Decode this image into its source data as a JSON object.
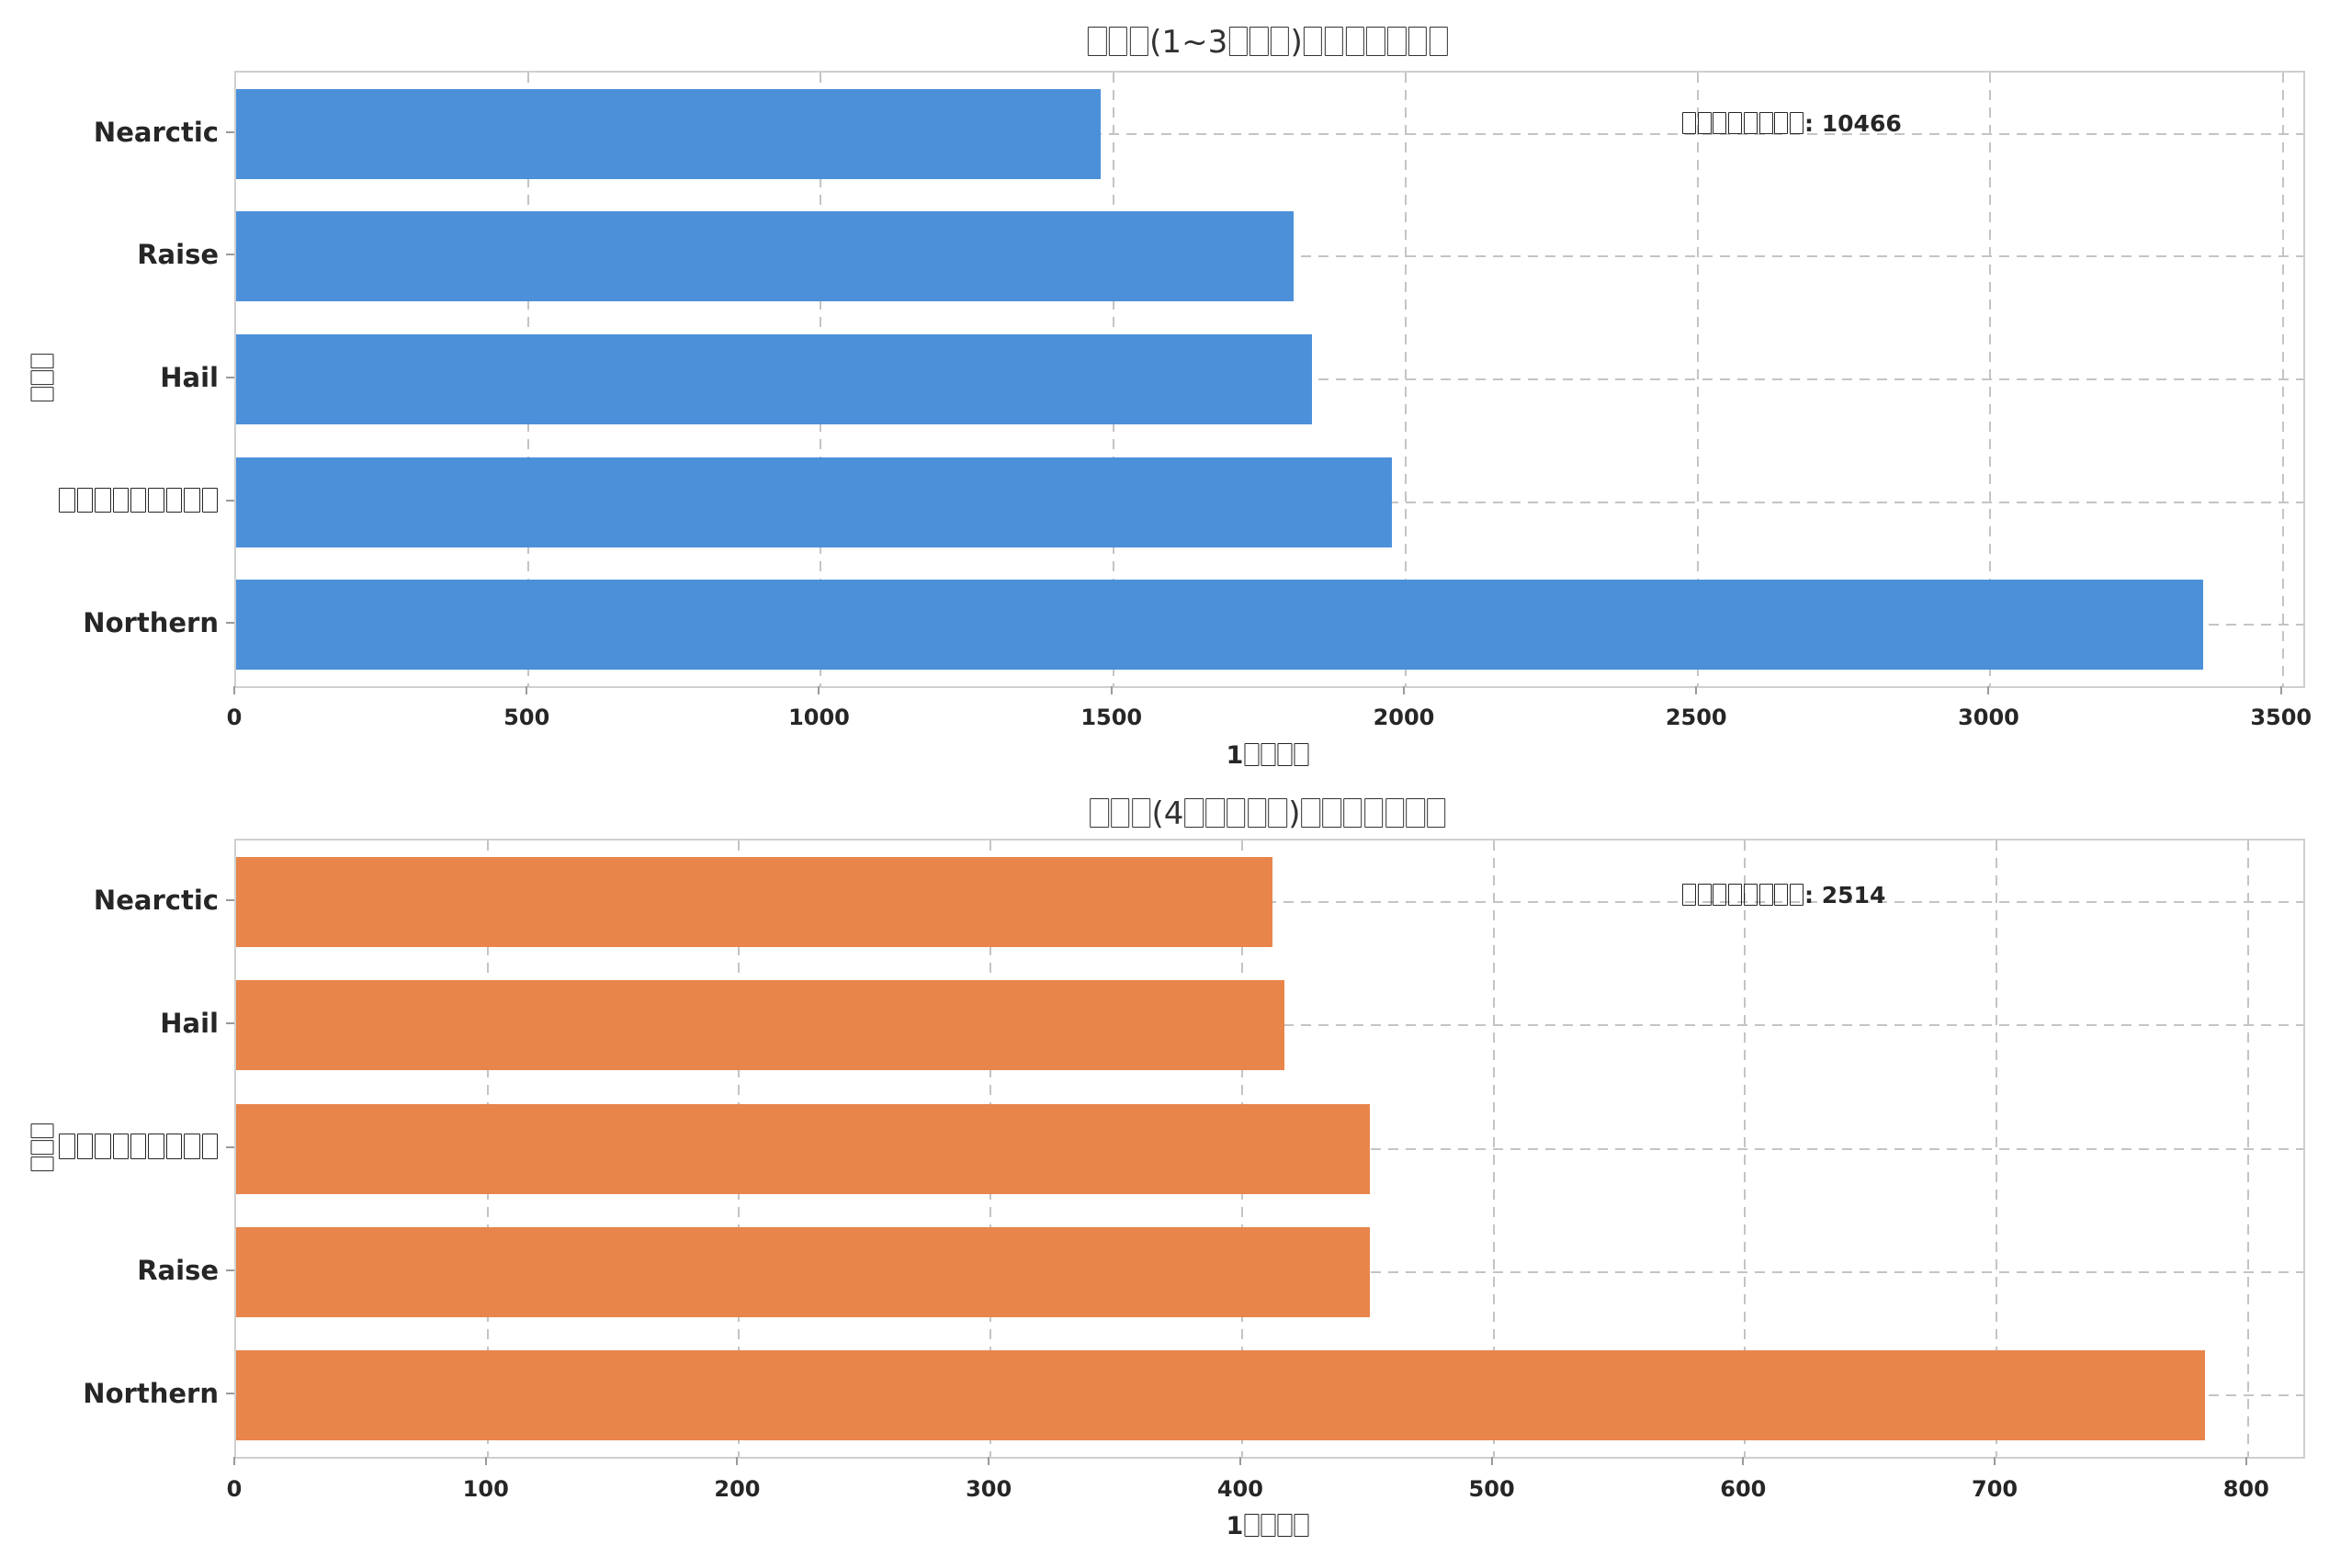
{
  "chart_data": [
    {
      "type": "bar",
      "orientation": "horizontal",
      "title": "□□□(1~3□□□)□□□□□□□",
      "categories": [
        "Nearctic",
        "Raise",
        "Hail",
        "□□□□□□□□□",
        "Northern"
      ],
      "values": [
        1478,
        1808,
        1840,
        1976,
        3364
      ],
      "annotation": "□□□□□□□□: 10466",
      "annotation_total": 10466,
      "xlabel": "1□□□□",
      "ylabel": "□□□",
      "xlim": [
        0,
        3535
      ],
      "xticks": [
        0,
        500,
        1000,
        1500,
        2000,
        2500,
        3000,
        3500
      ],
      "bar_color": "#4b90d9",
      "grid": true,
      "grid_style": "dashed",
      "legend": "none"
    },
    {
      "type": "bar",
      "orientation": "horizontal",
      "title": "□□□(4□□□□□)□□□□□□□",
      "categories": [
        "Nearctic",
        "Hail",
        "□□□□□□□□□",
        "Raise",
        "Northern"
      ],
      "values": [
        412,
        417,
        451,
        451,
        783
      ],
      "annotation": "□□□□□□□□: 2514",
      "annotation_total": 2514,
      "xlabel": "1□□□□",
      "ylabel": "□□□",
      "xlim": [
        0,
        822
      ],
      "xticks": [
        0,
        100,
        200,
        300,
        400,
        500,
        600,
        700,
        800
      ],
      "bar_color": "#e8854b",
      "grid": true,
      "grid_style": "dashed",
      "legend": "none"
    }
  ],
  "style": {
    "background": "#ffffff",
    "spine_color": "#cfcfcf",
    "gridline_color": "#c4c4c4",
    "text_color": "#262626",
    "tick_color": "#9a9a9a"
  }
}
